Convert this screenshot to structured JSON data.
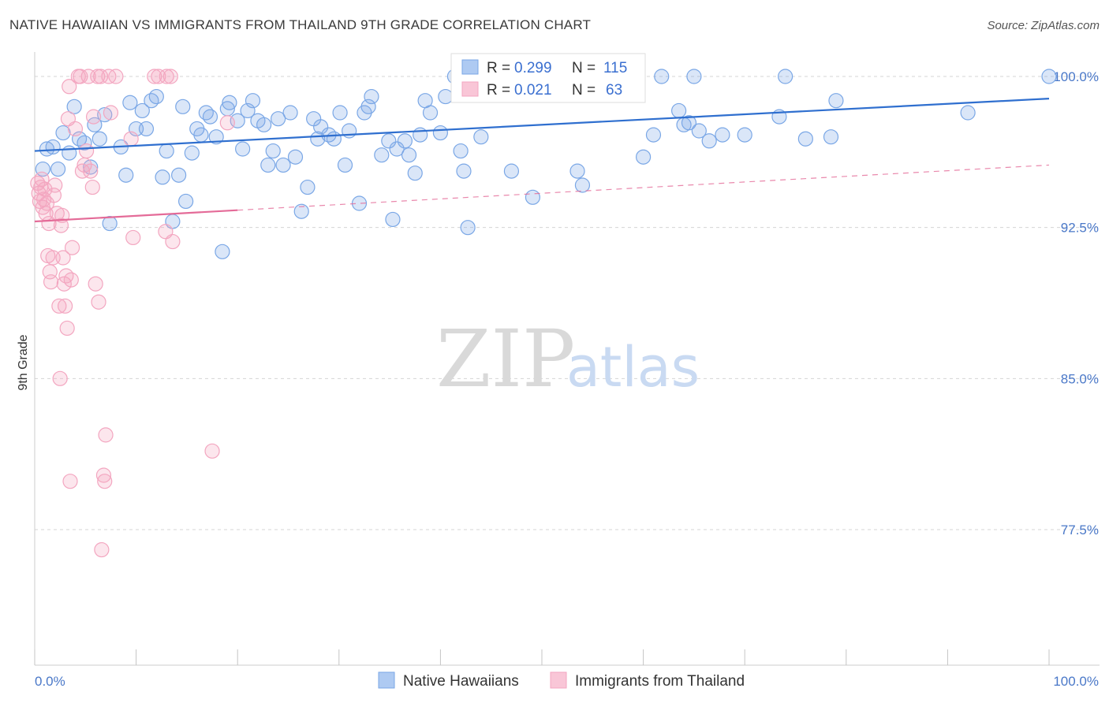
{
  "header": {
    "title": "NATIVE HAWAIIAN VS IMMIGRANTS FROM THAILAND 9TH GRADE CORRELATION CHART",
    "source": "Source: ZipAtlas.com"
  },
  "watermark": {
    "zip": "ZIP",
    "atlas": "atlas"
  },
  "colors": {
    "blue": "#7aa7e6",
    "blue_line": "#2f6fcf",
    "pink": "#f3a6c0",
    "pink_line": "#e46b98",
    "grid": "#d5d5d5",
    "tick_text": "#4a78c8"
  },
  "legend": {
    "r_label": "R =",
    "n_label": "N =",
    "rows": [
      {
        "series": "blue",
        "r": "0.299",
        "n": "115"
      },
      {
        "series": "pink",
        "r": "0.021",
        "n": "63"
      }
    ]
  },
  "chart_data": {
    "type": "scatter",
    "ylabel": "9th Grade",
    "xlim": [
      0,
      100
    ],
    "ylim": [
      70,
      100.8
    ],
    "x_tick_labels": [
      {
        "value": 0,
        "label": "0.0%"
      },
      {
        "value": 100,
        "label": "100.0%"
      }
    ],
    "y_ticks": [
      {
        "value": 100,
        "label": "100.0%"
      },
      {
        "value": 92.5,
        "label": "92.5%"
      },
      {
        "value": 85,
        "label": "85.0%"
      },
      {
        "value": 77.5,
        "label": "77.5%"
      }
    ],
    "series": [
      {
        "name": "Native Hawaiians",
        "color": "blue",
        "trend": {
          "x": [
            0,
            100
          ],
          "y": [
            96.3,
            98.9
          ],
          "dashed_extension": false
        },
        "points": [
          [
            0.8,
            95.4
          ],
          [
            1.2,
            96.4
          ],
          [
            1.8,
            96.5
          ],
          [
            2.3,
            95.4
          ],
          [
            2.8,
            97.2
          ],
          [
            3.4,
            96.2
          ],
          [
            3.9,
            98.5
          ],
          [
            4.4,
            96.9
          ],
          [
            4.9,
            96.7
          ],
          [
            5.5,
            95.5
          ],
          [
            5.9,
            97.6
          ],
          [
            6.4,
            96.9
          ],
          [
            6.9,
            98.1
          ],
          [
            7.4,
            92.7
          ],
          [
            8.5,
            96.5
          ],
          [
            9.0,
            95.1
          ],
          [
            9.4,
            98.7
          ],
          [
            10.0,
            97.4
          ],
          [
            10.6,
            98.3
          ],
          [
            11.0,
            97.4
          ],
          [
            11.5,
            98.8
          ],
          [
            12.0,
            99.0
          ],
          [
            12.6,
            95.0
          ],
          [
            13.0,
            96.3
          ],
          [
            13.6,
            92.8
          ],
          [
            14.2,
            95.1
          ],
          [
            14.6,
            98.5
          ],
          [
            14.9,
            93.8
          ],
          [
            15.5,
            96.2
          ],
          [
            16.0,
            97.4
          ],
          [
            16.4,
            97.1
          ],
          [
            16.9,
            98.2
          ],
          [
            17.3,
            98.0
          ],
          [
            17.9,
            97.0
          ],
          [
            18.5,
            91.3
          ],
          [
            19.0,
            98.4
          ],
          [
            19.2,
            98.7
          ],
          [
            20.0,
            97.8
          ],
          [
            20.5,
            96.4
          ],
          [
            21.0,
            98.3
          ],
          [
            21.5,
            98.8
          ],
          [
            22.0,
            97.8
          ],
          [
            22.6,
            97.6
          ],
          [
            23.0,
            95.6
          ],
          [
            23.5,
            96.3
          ],
          [
            24.0,
            97.9
          ],
          [
            24.5,
            95.6
          ],
          [
            25.2,
            98.2
          ],
          [
            25.7,
            96.0
          ],
          [
            26.3,
            93.3
          ],
          [
            26.9,
            94.5
          ],
          [
            27.5,
            97.9
          ],
          [
            27.9,
            96.9
          ],
          [
            28.2,
            97.5
          ],
          [
            29.0,
            97.1
          ],
          [
            29.5,
            96.9
          ],
          [
            30.1,
            98.2
          ],
          [
            30.6,
            95.6
          ],
          [
            31.0,
            97.3
          ],
          [
            32.0,
            93.7
          ],
          [
            32.5,
            98.2
          ],
          [
            32.9,
            98.5
          ],
          [
            33.2,
            99.0
          ],
          [
            34.2,
            96.1
          ],
          [
            34.9,
            96.8
          ],
          [
            35.3,
            92.9
          ],
          [
            35.7,
            96.4
          ],
          [
            36.5,
            96.8
          ],
          [
            36.9,
            96.1
          ],
          [
            37.5,
            95.2
          ],
          [
            38.0,
            97.1
          ],
          [
            38.5,
            98.8
          ],
          [
            39.0,
            98.2
          ],
          [
            40.0,
            97.2
          ],
          [
            40.5,
            99.0
          ],
          [
            41.4,
            100.0
          ],
          [
            42.0,
            96.3
          ],
          [
            42.3,
            95.3
          ],
          [
            42.7,
            92.5
          ],
          [
            43.4,
            100.0
          ],
          [
            44.0,
            97.0
          ],
          [
            44.5,
            100.0
          ],
          [
            47.0,
            95.3
          ],
          [
            49.1,
            94.0
          ],
          [
            50.0,
            99.1
          ],
          [
            53.5,
            95.3
          ],
          [
            54.0,
            94.6
          ],
          [
            57.6,
            100.0
          ],
          [
            60.0,
            96.0
          ],
          [
            61.0,
            97.1
          ],
          [
            61.8,
            100.0
          ],
          [
            63.5,
            98.3
          ],
          [
            64.0,
            97.6
          ],
          [
            64.5,
            97.7
          ],
          [
            65.0,
            100.0
          ],
          [
            65.5,
            97.3
          ],
          [
            66.5,
            96.8
          ],
          [
            67.8,
            97.1
          ],
          [
            70.0,
            97.1
          ],
          [
            73.4,
            98.0
          ],
          [
            74.0,
            100.0
          ],
          [
            76.0,
            96.9
          ],
          [
            78.5,
            97.0
          ],
          [
            79.0,
            98.8
          ],
          [
            92.0,
            98.2
          ],
          [
            100.0,
            100.0
          ]
        ]
      },
      {
        "name": "Immigrants from Thailand",
        "color": "pink",
        "trend": {
          "x": [
            0,
            100
          ],
          "y": [
            92.8,
            95.6
          ],
          "solid_until_x": 20,
          "dashed_extension": true
        },
        "points": [
          [
            0.3,
            94.7
          ],
          [
            0.4,
            94.2
          ],
          [
            0.5,
            93.8
          ],
          [
            0.6,
            94.5
          ],
          [
            0.7,
            94.9
          ],
          [
            0.8,
            93.5
          ],
          [
            0.9,
            93.9
          ],
          [
            1.0,
            94.4
          ],
          [
            1.1,
            93.2
          ],
          [
            1.2,
            93.7
          ],
          [
            1.3,
            91.1
          ],
          [
            1.4,
            92.7
          ],
          [
            1.5,
            90.3
          ],
          [
            1.6,
            89.8
          ],
          [
            1.8,
            91.0
          ],
          [
            1.9,
            94.1
          ],
          [
            2.0,
            94.6
          ],
          [
            2.2,
            93.2
          ],
          [
            2.4,
            88.6
          ],
          [
            2.5,
            85.0
          ],
          [
            2.6,
            92.6
          ],
          [
            2.7,
            93.1
          ],
          [
            2.8,
            91.0
          ],
          [
            2.9,
            89.7
          ],
          [
            3.0,
            88.6
          ],
          [
            3.1,
            90.1
          ],
          [
            3.2,
            87.5
          ],
          [
            3.3,
            97.9
          ],
          [
            3.4,
            99.5
          ],
          [
            3.5,
            79.9
          ],
          [
            3.6,
            89.9
          ],
          [
            3.7,
            91.5
          ],
          [
            4.0,
            97.4
          ],
          [
            4.3,
            100.0
          ],
          [
            4.5,
            100.0
          ],
          [
            4.7,
            95.3
          ],
          [
            4.9,
            95.6
          ],
          [
            5.1,
            96.3
          ],
          [
            5.3,
            100.0
          ],
          [
            5.5,
            95.3
          ],
          [
            5.7,
            94.5
          ],
          [
            5.8,
            98.0
          ],
          [
            6.0,
            89.7
          ],
          [
            6.2,
            100.0
          ],
          [
            6.3,
            88.8
          ],
          [
            6.5,
            100.0
          ],
          [
            6.6,
            76.5
          ],
          [
            6.8,
            80.2
          ],
          [
            6.9,
            79.9
          ],
          [
            7.0,
            82.2
          ],
          [
            7.3,
            100.0
          ],
          [
            7.5,
            98.2
          ],
          [
            8.0,
            100.0
          ],
          [
            9.5,
            96.9
          ],
          [
            9.7,
            92.0
          ],
          [
            11.8,
            100.0
          ],
          [
            12.2,
            100.0
          ],
          [
            12.9,
            92.3
          ],
          [
            13.0,
            100.0
          ],
          [
            13.4,
            100.0
          ],
          [
            13.6,
            91.8
          ],
          [
            17.5,
            81.4
          ],
          [
            19.0,
            97.7
          ]
        ]
      }
    ]
  },
  "bottom_legend": [
    {
      "label": "Native Hawaiians",
      "color": "blue"
    },
    {
      "label": "Immigrants from Thailand",
      "color": "pink"
    }
  ]
}
